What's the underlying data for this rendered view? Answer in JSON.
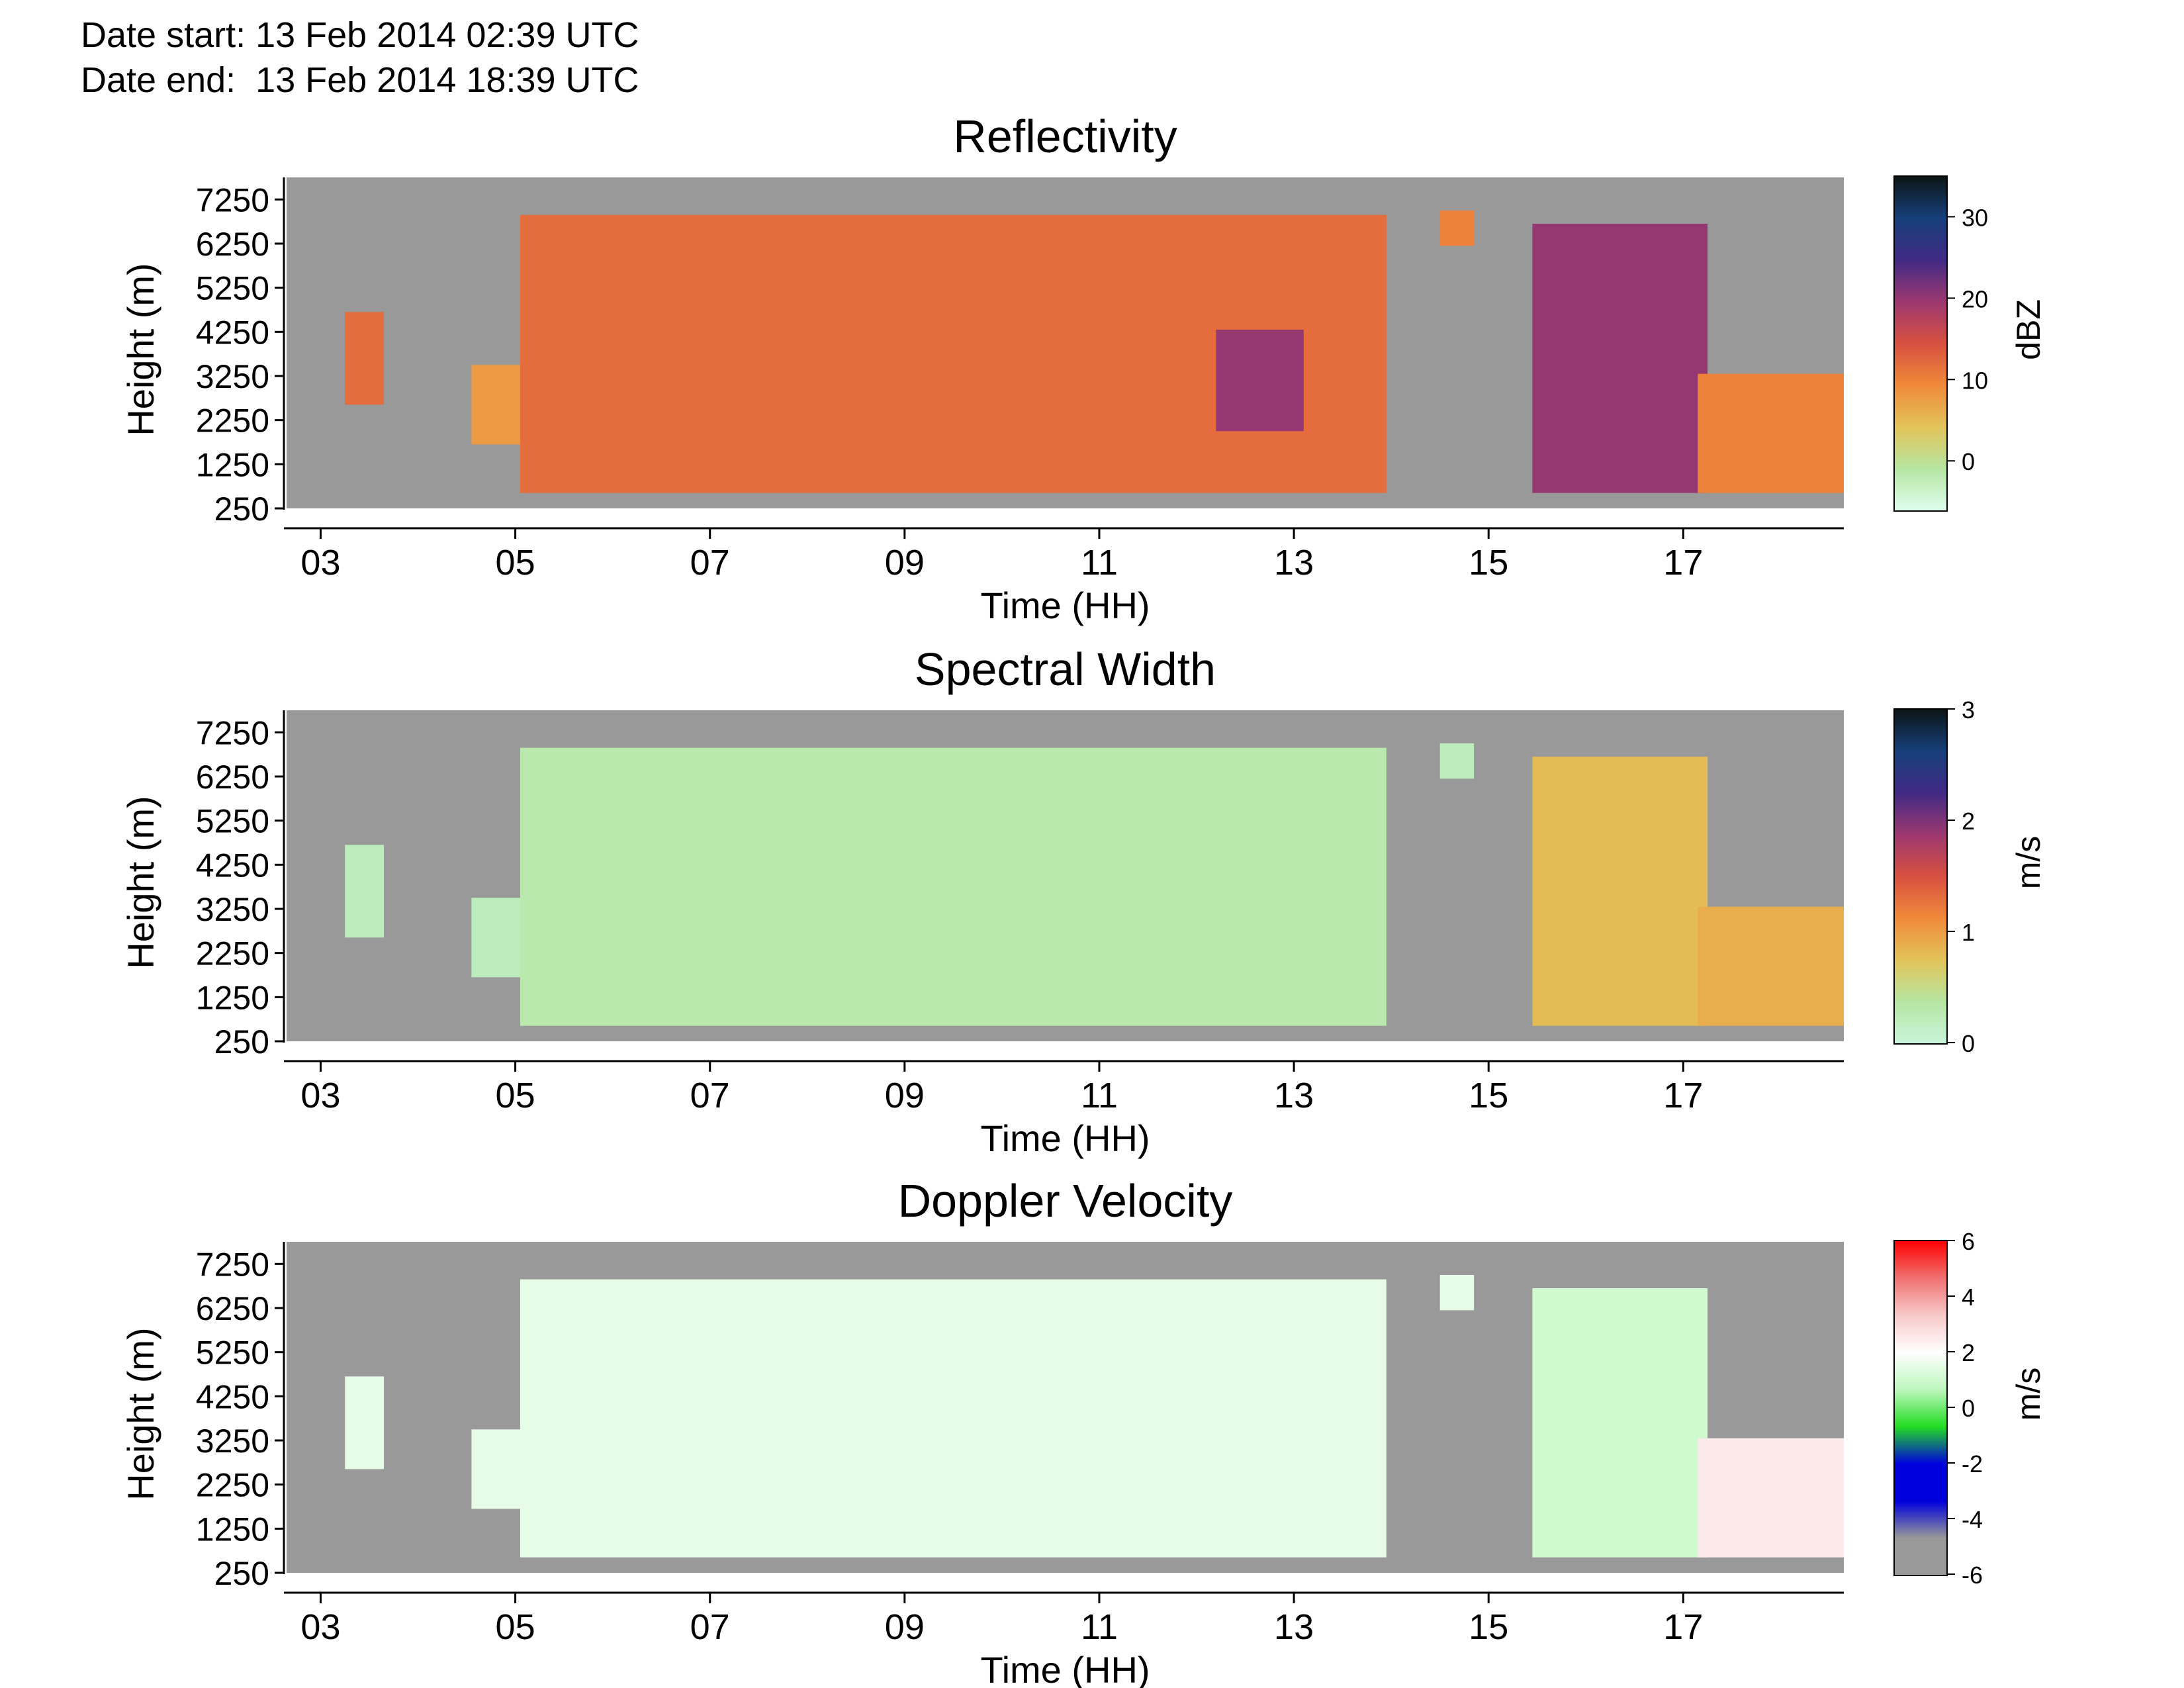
{
  "header": {
    "date_start": "Date start: 13 Feb 2014 02:39 UTC",
    "date_end": "Date end:  13 Feb 2014 18:39 UTC"
  },
  "chart_data": [
    {
      "type": "heatmap",
      "title": "Reflectivity",
      "xlabel": "Time (HH)",
      "ylabel": "Height (m)",
      "colorbar_label": "dBZ",
      "xlim": [
        2.65,
        18.65
      ],
      "ylim": [
        250,
        7750
      ],
      "x_ticks": [
        3,
        5,
        7,
        9,
        11,
        13,
        15,
        17
      ],
      "x_tick_labels": [
        "03",
        "05",
        "07",
        "09",
        "11",
        "13",
        "15",
        "17"
      ],
      "y_ticks": [
        250,
        1250,
        2250,
        3250,
        4250,
        5250,
        6250,
        7250
      ],
      "y_tick_labels": [
        "250",
        "1250",
        "2250",
        "3250",
        "4250",
        "5250",
        "6250",
        "7250"
      ],
      "colorbar_range": [
        -6,
        35
      ],
      "colorbar_ticks": [
        0,
        10,
        20,
        30
      ],
      "colorbar_tick_labels": [
        "0",
        "10",
        "20",
        "30"
      ],
      "colorscale": [
        "#e0fff0",
        "#b6e6a2",
        "#e2c45a",
        "#f08a3a",
        "#d85040",
        "#9c3870",
        "#402a84",
        "#16407a",
        "#0c1414"
      ],
      "background_color": "#999999",
      "echo_regions": [
        {
          "time": [
            3.25,
            3.65
          ],
          "height": [
            2600,
            4700
          ],
          "value": 12
        },
        {
          "time": [
            4.55,
            5.15
          ],
          "height": [
            1700,
            3500
          ],
          "value": 8
        },
        {
          "time": [
            5.05,
            13.95
          ],
          "height": [
            600,
            6900
          ],
          "value": 12
        },
        {
          "time": [
            12.2,
            13.1
          ],
          "height": [
            2000,
            4300
          ],
          "value": 20
        },
        {
          "time": [
            14.5,
            14.85
          ],
          "height": [
            6200,
            7000
          ],
          "value": 10
        },
        {
          "time": [
            15.45,
            17.25
          ],
          "height": [
            600,
            6700
          ],
          "value": 20
        },
        {
          "time": [
            17.15,
            18.65
          ],
          "height": [
            600,
            3300
          ],
          "value": 10
        }
      ]
    },
    {
      "type": "heatmap",
      "title": "Spectral Width",
      "xlabel": "Time (HH)",
      "ylabel": "Height (m)",
      "colorbar_label": "m/s",
      "xlim": [
        2.65,
        18.65
      ],
      "ylim": [
        250,
        7750
      ],
      "x_ticks": [
        3,
        5,
        7,
        9,
        11,
        13,
        15,
        17
      ],
      "x_tick_labels": [
        "03",
        "05",
        "07",
        "09",
        "11",
        "13",
        "15",
        "17"
      ],
      "y_ticks": [
        250,
        1250,
        2250,
        3250,
        4250,
        5250,
        6250,
        7250
      ],
      "y_tick_labels": [
        "250",
        "1250",
        "2250",
        "3250",
        "4250",
        "5250",
        "6250",
        "7250"
      ],
      "colorbar_range": [
        0,
        3
      ],
      "colorbar_ticks": [
        0,
        1,
        2,
        3
      ],
      "colorbar_tick_labels": [
        "0",
        "1",
        "2",
        "3"
      ],
      "colorscale": [
        "#c8f5dc",
        "#b6e6a2",
        "#e2c45a",
        "#f08a3a",
        "#d85040",
        "#9c3870",
        "#402a84",
        "#16407a",
        "#0c1414"
      ],
      "background_color": "#999999",
      "echo_regions": [
        {
          "time": [
            3.25,
            3.65
          ],
          "height": [
            2600,
            4700
          ],
          "value": 0.2
        },
        {
          "time": [
            4.55,
            5.15
          ],
          "height": [
            1700,
            3500
          ],
          "value": 0.2
        },
        {
          "time": [
            5.05,
            13.95
          ],
          "height": [
            600,
            6900
          ],
          "value": 0.3
        },
        {
          "time": [
            14.5,
            14.85
          ],
          "height": [
            6200,
            7000
          ],
          "value": 0.2
        },
        {
          "time": [
            15.45,
            17.25
          ],
          "height": [
            600,
            6700
          ],
          "value": 0.8
        },
        {
          "time": [
            17.15,
            18.65
          ],
          "height": [
            600,
            3300
          ],
          "value": 0.9
        }
      ]
    },
    {
      "type": "heatmap",
      "title": "Doppler Velocity",
      "xlabel": "Time (HH)",
      "ylabel": "Height (m)",
      "colorbar_label": "m/s",
      "xlim": [
        2.65,
        18.65
      ],
      "ylim": [
        250,
        7750
      ],
      "x_ticks": [
        3,
        5,
        7,
        9,
        11,
        13,
        15,
        17
      ],
      "x_tick_labels": [
        "03",
        "05",
        "07",
        "09",
        "11",
        "13",
        "15",
        "17"
      ],
      "y_ticks": [
        250,
        1250,
        2250,
        3250,
        4250,
        5250,
        6250,
        7250
      ],
      "y_tick_labels": [
        "250",
        "1250",
        "2250",
        "3250",
        "4250",
        "5250",
        "6250",
        "7250"
      ],
      "colorbar_range": [
        -6,
        6
      ],
      "colorbar_ticks": [
        -6,
        -4,
        -2,
        0,
        2,
        4,
        6
      ],
      "colorbar_tick_labels": [
        "-6",
        "-4",
        "-2",
        "0",
        "2",
        "4",
        "6"
      ],
      "colorscale": [
        "#999999",
        "#999999",
        "#0000dd",
        "#0000dd",
        "#22dd22",
        "#bff7bf",
        "#ffffff",
        "#f8c8c8",
        "#f07070",
        "#ff0000"
      ],
      "background_color": "#999999",
      "echo_regions": [
        {
          "time": [
            3.25,
            3.65
          ],
          "height": [
            2600,
            4700
          ],
          "value": 1.5
        },
        {
          "time": [
            4.55,
            5.15
          ],
          "height": [
            1700,
            3500
          ],
          "value": 1.5
        },
        {
          "time": [
            5.05,
            13.95
          ],
          "height": [
            600,
            6900
          ],
          "value": 1.5
        },
        {
          "time": [
            14.5,
            14.85
          ],
          "height": [
            6200,
            7000
          ],
          "value": 1.5
        },
        {
          "time": [
            15.45,
            17.25
          ],
          "height": [
            600,
            6700
          ],
          "value": 1.0
        },
        {
          "time": [
            17.15,
            18.65
          ],
          "height": [
            600,
            3300
          ],
          "value": 2.5
        }
      ]
    }
  ]
}
